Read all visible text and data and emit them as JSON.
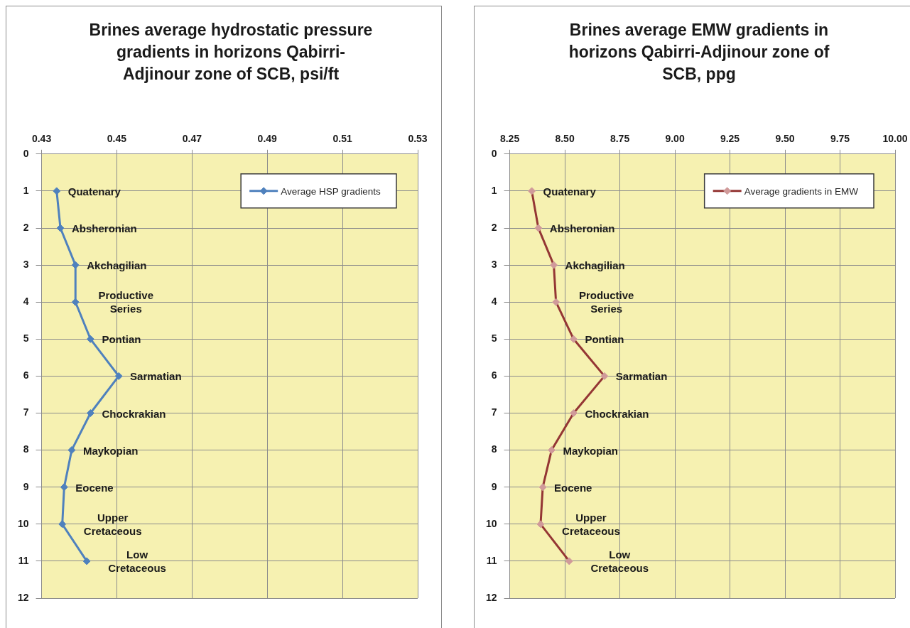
{
  "chart_data": [
    {
      "type": "line",
      "title": "Brines average hydrostatic pressure gradients in horizons Qabirri-Adjinour zone of SCB, psi/ft",
      "series": [
        {
          "name": "Average HSP gradients",
          "color": "#4f81bd",
          "x": [
            0.434,
            0.435,
            0.439,
            0.439,
            0.443,
            0.4505,
            0.443,
            0.438,
            0.436,
            0.4355,
            0.442
          ],
          "values": [
            1,
            2,
            3,
            4,
            5,
            6,
            7,
            8,
            9,
            10,
            11
          ]
        }
      ],
      "xlim": [
        0.43,
        0.53
      ],
      "xticks": [
        0.43,
        0.45,
        0.47,
        0.49,
        0.51,
        0.53
      ],
      "ylim": [
        12,
        0
      ],
      "yticks": [
        0,
        1,
        2,
        3,
        4,
        5,
        6,
        7,
        8,
        9,
        10,
        11,
        12
      ],
      "grid": true,
      "legend": "top right",
      "marker": "diamond",
      "line_style": "solid",
      "annotations": [
        {
          "text": "Quatenary",
          "x": 0.434,
          "y": 1
        },
        {
          "text": "Absheronian",
          "x": 0.435,
          "y": 2
        },
        {
          "text": "Akchagilian",
          "x": 0.439,
          "y": 3
        },
        {
          "text": "Productive Series",
          "x": 0.439,
          "y": 4
        },
        {
          "text": "Pontian",
          "x": 0.443,
          "y": 5
        },
        {
          "text": "Sarmatian",
          "x": 0.4505,
          "y": 6
        },
        {
          "text": "Chockrakian",
          "x": 0.443,
          "y": 7
        },
        {
          "text": "Maykopian",
          "x": 0.438,
          "y": 8
        },
        {
          "text": "Eocene",
          "x": 0.436,
          "y": 9
        },
        {
          "text": "Upper Cretaceous",
          "x": 0.4355,
          "y": 10
        },
        {
          "text": "Low Cretaceous",
          "x": 0.442,
          "y": 11
        }
      ]
    },
    {
      "type": "line",
      "title": "Brines average EMW gradients in horizons Qabirri-Adjinour zone of SCB, ppg",
      "series": [
        {
          "name": "Average gradients in EMW",
          "color": "#943634",
          "colors": [
            "#d09a9a",
            "#d09a9a",
            "#d09a9a",
            "#d09a9a",
            "#d09a9a",
            "#d09a9a",
            "#d09a9a",
            "#d09a9a",
            "#d09a9a",
            "#d09a9a",
            "#d09a9a"
          ],
          "x": [
            8.35,
            8.38,
            8.45,
            8.46,
            8.54,
            8.68,
            8.54,
            8.44,
            8.4,
            8.39,
            8.52
          ],
          "values": [
            1,
            2,
            3,
            4,
            5,
            6,
            7,
            8,
            9,
            10,
            11
          ]
        }
      ],
      "xlim": [
        8.25,
        10
      ],
      "xticks": [
        8.25,
        {
          "value": 8.5,
          "label": "8.50"
        },
        8.75,
        {
          "value": 9,
          "label": "9.00"
        },
        9.25,
        {
          "value": 9.5,
          "label": "9.50"
        },
        9.75,
        {
          "value": 10,
          "label": "10.00"
        }
      ],
      "ylim": [
        12,
        0
      ],
      "yticks": [
        0,
        1,
        2,
        3,
        4,
        5,
        6,
        7,
        8,
        9,
        10,
        11,
        12
      ],
      "grid": true,
      "legend": "top right",
      "marker": "diamond",
      "line_style": "solid",
      "annotations": [
        {
          "text": "Quatenary",
          "x": 8.35,
          "y": 1
        },
        {
          "text": "Absheronian",
          "x": 8.38,
          "y": 2
        },
        {
          "text": "Akchagilian",
          "x": 8.45,
          "y": 3
        },
        {
          "text": "Productive Series",
          "x": 8.46,
          "y": 4
        },
        {
          "text": "Pontian",
          "x": 8.54,
          "y": 5
        },
        {
          "text": "Sarmatian",
          "x": 8.68,
          "y": 6
        },
        {
          "text": "Chockrakian",
          "x": 8.54,
          "y": 7
        },
        {
          "text": "Maykopian",
          "x": 8.44,
          "y": 8
        },
        {
          "text": "Eocene",
          "x": 8.4,
          "y": 9
        },
        {
          "text": "Upper Cretaceous",
          "x": 8.39,
          "y": 10
        },
        {
          "text": "Low Cretaceous",
          "x": 8.52,
          "y": 11
        }
      ]
    }
  ]
}
